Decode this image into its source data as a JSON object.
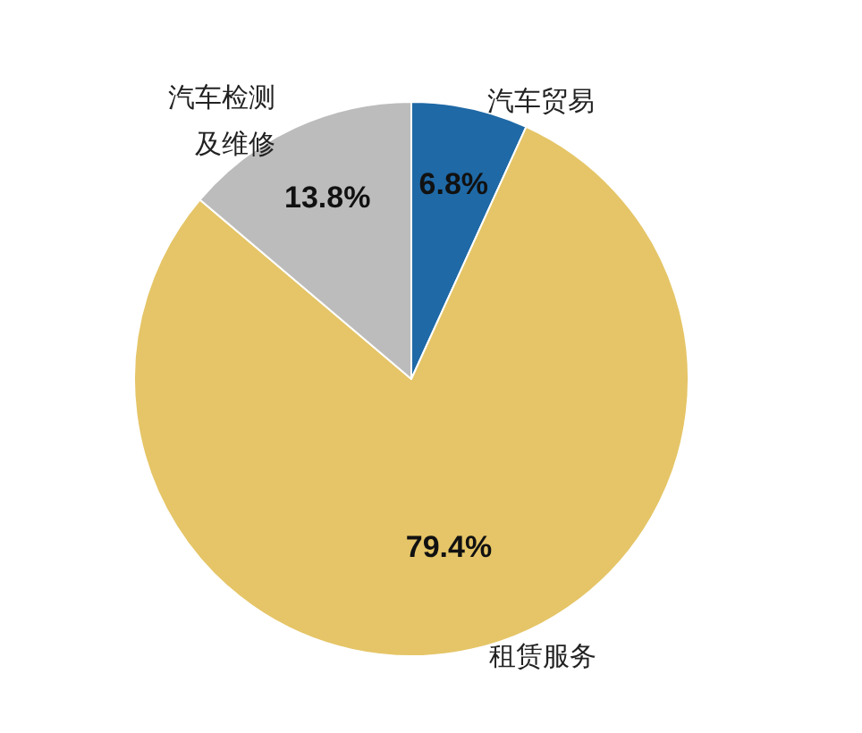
{
  "chart_data": {
    "type": "pie",
    "categories": [
      "汽车贸易",
      "租赁服务",
      "汽车检测及维修"
    ],
    "values": [
      6.8,
      79.4,
      13.8
    ],
    "colors": [
      "#1f69a6",
      "#e5c567",
      "#bcbcbc"
    ],
    "value_labels": [
      "6.8%",
      "79.4%",
      "13.8%"
    ],
    "legend": false
  }
}
